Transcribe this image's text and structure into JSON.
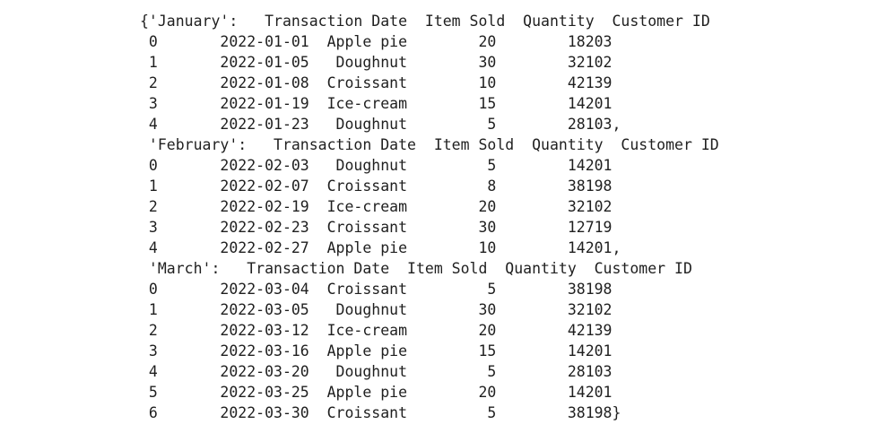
{
  "output": {
    "lines": [
      "{'January':   Transaction Date  Item Sold  Quantity  Customer ID",
      " 0       2022-01-01  Apple pie        20        18203",
      " 1       2022-01-05   Doughnut        30        32102",
      " 2       2022-01-08  Croissant        10        42139",
      " 3       2022-01-19  Ice-cream        15        14201",
      " 4       2022-01-23   Doughnut         5        28103,",
      " 'February':   Transaction Date  Item Sold  Quantity  Customer ID",
      " 0       2022-02-03   Doughnut         5        14201",
      " 1       2022-02-07  Croissant         8        38198",
      " 2       2022-02-19  Ice-cream        20        32102",
      " 3       2022-02-23  Croissant        30        12719",
      " 4       2022-02-27  Apple pie        10        14201,",
      " 'March':   Transaction Date  Item Sold  Quantity  Customer ID",
      " 0       2022-03-04  Croissant         5        38198",
      " 1       2022-03-05   Doughnut        30        32102",
      " 2       2022-03-12  Ice-cream        20        42139",
      " 3       2022-03-16  Apple pie        15        14201",
      " 4       2022-03-20   Doughnut         5        28103",
      " 5       2022-03-25  Apple pie        20        14201",
      " 6       2022-03-30  Croissant         5        38198}"
    ]
  }
}
